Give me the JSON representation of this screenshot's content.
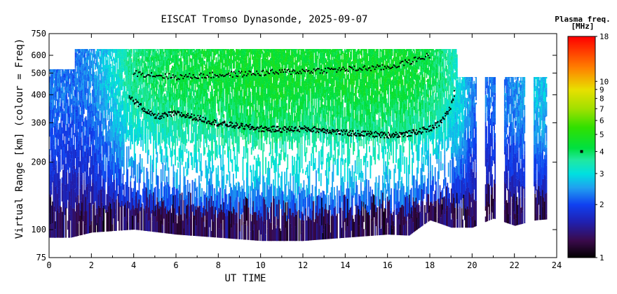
{
  "chart_data": {
    "type": "heatmap",
    "title": "EISCAT Tromso Dynasonde, 2025-09-07",
    "xlabel": "UT TIME",
    "ylabel": "Virtual Range [km] (colour = Freq)",
    "x_ticks": [
      0,
      2,
      4,
      6,
      8,
      10,
      12,
      14,
      16,
      18,
      20,
      22,
      24
    ],
    "xlim": [
      0,
      24
    ],
    "y_ticks": [
      75,
      100,
      200,
      300,
      400,
      500,
      600,
      750
    ],
    "ylim": [
      75,
      750
    ],
    "y_scale": "log",
    "colorbar": {
      "title_line1": "Plasma freq.",
      "title_line2": "[MHz]",
      "ticks": [
        1,
        2,
        3,
        4,
        5,
        6,
        7,
        8,
        9,
        10,
        18
      ],
      "range": [
        1,
        18
      ],
      "scale": "log",
      "marker_value": 4,
      "stops": [
        {
          "value": 1,
          "color": "#000000"
        },
        {
          "value": 1.25,
          "color": "#3a0a4a"
        },
        {
          "value": 1.6,
          "color": "#2020b0"
        },
        {
          "value": 2,
          "color": "#1040f0"
        },
        {
          "value": 2.5,
          "color": "#20a0f0"
        },
        {
          "value": 3,
          "color": "#00e0e0"
        },
        {
          "value": 3.6,
          "color": "#20e8a0"
        },
        {
          "value": 4.2,
          "color": "#00e040"
        },
        {
          "value": 5.5,
          "color": "#30e000"
        },
        {
          "value": 7,
          "color": "#a0e000"
        },
        {
          "value": 9,
          "color": "#e8e000"
        },
        {
          "value": 12,
          "color": "#ff8000"
        },
        {
          "value": 18,
          "color": "#ff0000"
        }
      ]
    },
    "data_summary": {
      "e_region_trace_km": [
        [
          0,
          100
        ],
        [
          1,
          100
        ],
        [
          2,
          105
        ],
        [
          4,
          108
        ],
        [
          6,
          103
        ],
        [
          8,
          100
        ],
        [
          10,
          97
        ],
        [
          12,
          97
        ],
        [
          14,
          100
        ],
        [
          16,
          103
        ],
        [
          17,
          102
        ],
        [
          18,
          118
        ],
        [
          19,
          110
        ],
        [
          20,
          110
        ],
        [
          21,
          120
        ],
        [
          22,
          112
        ],
        [
          23,
          118
        ],
        [
          24,
          120
        ]
      ],
      "f_region_peak_trace_km": [
        [
          3.8,
          390
        ],
        [
          4.5,
          345
        ],
        [
          5,
          318
        ],
        [
          6,
          330
        ],
        [
          7,
          315
        ],
        [
          8,
          298
        ],
        [
          9,
          290
        ],
        [
          10,
          282
        ],
        [
          11,
          280
        ],
        [
          12,
          282
        ],
        [
          13,
          278
        ],
        [
          14,
          270
        ],
        [
          15,
          268
        ],
        [
          16,
          264
        ],
        [
          17,
          268
        ],
        [
          18,
          282
        ],
        [
          18.5,
          300
        ],
        [
          19,
          350
        ],
        [
          19.2,
          420
        ]
      ],
      "f_region_top_trace_km": [
        [
          4,
          500
        ],
        [
          6,
          480
        ],
        [
          8,
          490
        ],
        [
          10,
          500
        ],
        [
          12,
          510
        ],
        [
          14,
          520
        ],
        [
          16,
          530
        ],
        [
          17,
          560
        ],
        [
          18,
          600
        ]
      ],
      "f_region_freq_mhz": [
        [
          0,
          2.3
        ],
        [
          1,
          2.2
        ],
        [
          2,
          2.4
        ],
        [
          3,
          3.0
        ],
        [
          4,
          3.8
        ],
        [
          5,
          4.0
        ],
        [
          6,
          4.2
        ],
        [
          7,
          4.3
        ],
        [
          8,
          4.4
        ],
        [
          9,
          4.5
        ],
        [
          10,
          4.6
        ],
        [
          11,
          4.6
        ],
        [
          12,
          4.5
        ],
        [
          13,
          4.4
        ],
        [
          14,
          4.5
        ],
        [
          15,
          4.5
        ],
        [
          16,
          4.5
        ],
        [
          17,
          4.4
        ],
        [
          18,
          4.2
        ],
        [
          19,
          3.5
        ],
        [
          20,
          2.3
        ],
        [
          21,
          2.2
        ],
        [
          22,
          2.4
        ],
        [
          23,
          2.8
        ],
        [
          24,
          2.6
        ]
      ],
      "data_gaps_hours": [
        [
          20.2,
          20.6
        ],
        [
          21.1,
          21.5
        ],
        [
          22.5,
          22.9
        ],
        [
          23.5,
          24
        ]
      ]
    }
  }
}
